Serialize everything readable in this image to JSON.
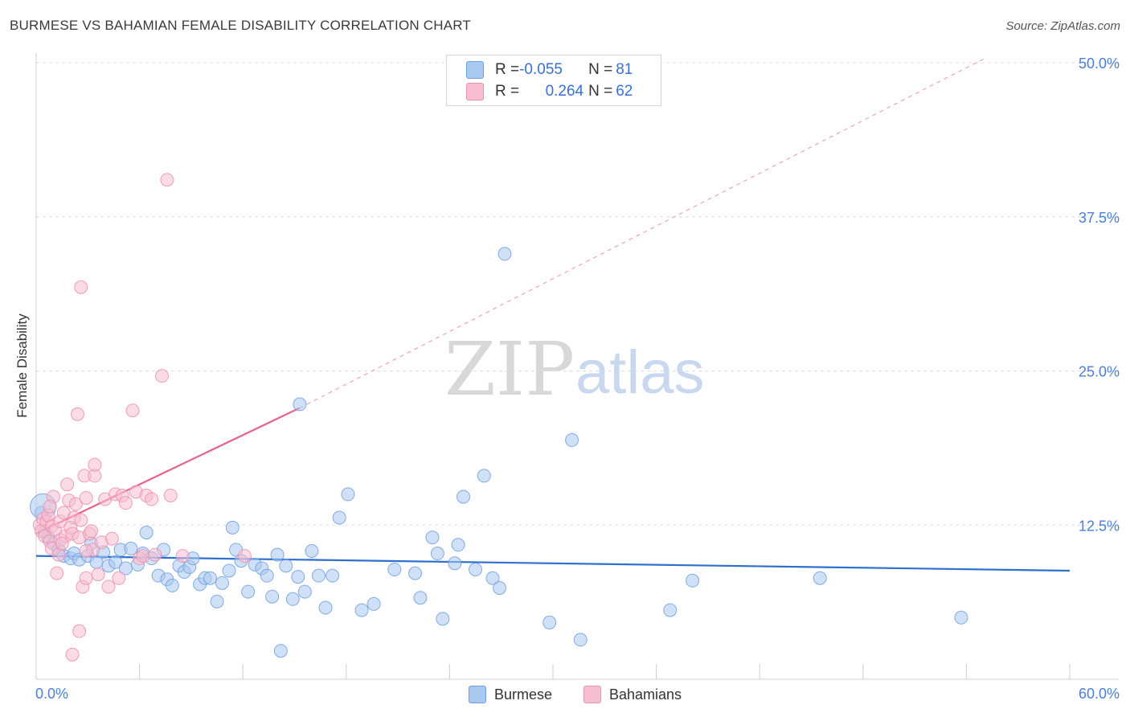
{
  "title": "BURMESE VS BAHAMIAN FEMALE DISABILITY CORRELATION CHART",
  "source": "Source: ZipAtlas.com",
  "legend": {
    "rows": [
      {
        "r_label": "R = ",
        "r_value": "-0.055",
        "n_label": "N = ",
        "n_value": "81",
        "color": "#a9c8f0",
        "border": "#6f9fe0"
      },
      {
        "r_label": "R = ",
        "r_value": "0.264",
        "n_label": "N = ",
        "n_value": "62",
        "color": "#f7bdd0",
        "border": "#ec8fae"
      }
    ]
  },
  "bottom_legend": [
    {
      "label": "Burmese",
      "color": "#a9c8f0",
      "border": "#6f9fe0"
    },
    {
      "label": "Bahamians",
      "color": "#f7bdd0",
      "border": "#ec8fae"
    }
  ],
  "watermark": {
    "zip": "ZIP",
    "atlas": "atlas"
  },
  "chart_data": {
    "type": "scatter",
    "title": "BURMESE VS BAHAMIAN FEMALE DISABILITY CORRELATION CHART",
    "xlabel": "",
    "ylabel": "Female Disability",
    "xlim": [
      0,
      60
    ],
    "ylim": [
      0,
      50
    ],
    "x_tick_labels": [
      "0.0%",
      "60.0%"
    ],
    "y_ticks": [
      12.5,
      25.0,
      37.5,
      50.0
    ],
    "y_tick_labels": [
      "12.5%",
      "25.0%",
      "37.5%",
      "50.0%"
    ],
    "grid": true,
    "legend_position": "top-center",
    "series": [
      {
        "name": "Burmese",
        "color": "#6f9fe0",
        "fill": "#a9c8f0",
        "trend": {
          "x": [
            0,
            60
          ],
          "y": [
            10.0,
            8.8
          ],
          "color": "#2f6fd0"
        },
        "points": [
          [
            0.3,
            13.5
          ],
          [
            0.5,
            12.0
          ],
          [
            0.7,
            11.5
          ],
          [
            1.0,
            11.0
          ],
          [
            1.3,
            10.5
          ],
          [
            1.6,
            10.0
          ],
          [
            2.0,
            9.8
          ],
          [
            2.2,
            10.2
          ],
          [
            2.5,
            9.7
          ],
          [
            3.0,
            10.0
          ],
          [
            3.2,
            11.0
          ],
          [
            3.5,
            9.5
          ],
          [
            3.9,
            10.3
          ],
          [
            4.2,
            9.2
          ],
          [
            4.6,
            9.5
          ],
          [
            4.9,
            10.5
          ],
          [
            5.2,
            9.0
          ],
          [
            5.5,
            10.6
          ],
          [
            5.9,
            9.3
          ],
          [
            6.2,
            10.2
          ],
          [
            6.4,
            11.9
          ],
          [
            6.7,
            9.8
          ],
          [
            7.1,
            8.4
          ],
          [
            7.4,
            10.5
          ],
          [
            7.6,
            8.1
          ],
          [
            7.9,
            7.6
          ],
          [
            8.3,
            9.2
          ],
          [
            8.6,
            8.7
          ],
          [
            8.9,
            9.1
          ],
          [
            9.1,
            9.8
          ],
          [
            9.5,
            7.7
          ],
          [
            9.8,
            8.2
          ],
          [
            10.1,
            8.2
          ],
          [
            10.5,
            6.3
          ],
          [
            10.8,
            7.8
          ],
          [
            11.2,
            8.8
          ],
          [
            11.4,
            12.3
          ],
          [
            11.6,
            10.5
          ],
          [
            11.9,
            9.6
          ],
          [
            12.3,
            7.1
          ],
          [
            12.7,
            9.3
          ],
          [
            13.1,
            9.0
          ],
          [
            13.4,
            8.4
          ],
          [
            13.7,
            6.7
          ],
          [
            14.0,
            10.1
          ],
          [
            14.2,
            2.3
          ],
          [
            14.5,
            9.2
          ],
          [
            14.9,
            6.5
          ],
          [
            15.2,
            8.3
          ],
          [
            15.6,
            7.1
          ],
          [
            16.0,
            10.4
          ],
          [
            16.4,
            8.4
          ],
          [
            16.8,
            5.8
          ],
          [
            17.2,
            8.4
          ],
          [
            17.6,
            13.1
          ],
          [
            18.1,
            15.0
          ],
          [
            18.9,
            5.6
          ],
          [
            19.6,
            6.1
          ],
          [
            20.8,
            8.9
          ],
          [
            22.0,
            8.6
          ],
          [
            22.3,
            6.6
          ],
          [
            23.0,
            11.5
          ],
          [
            23.3,
            10.2
          ],
          [
            23.6,
            4.9
          ],
          [
            24.3,
            9.4
          ],
          [
            24.5,
            10.9
          ],
          [
            24.8,
            14.8
          ],
          [
            25.5,
            8.9
          ],
          [
            26.0,
            16.5
          ],
          [
            26.5,
            8.2
          ],
          [
            26.9,
            7.4
          ],
          [
            27.2,
            34.5
          ],
          [
            29.8,
            4.6
          ],
          [
            31.1,
            19.4
          ],
          [
            31.6,
            3.2
          ],
          [
            36.8,
            5.6
          ],
          [
            38.1,
            8.0
          ],
          [
            15.3,
            22.3
          ],
          [
            45.5,
            8.2
          ],
          [
            53.7,
            5.0
          ],
          [
            0.4,
            14.0
          ]
        ]
      },
      {
        "name": "Bahamians",
        "color": "#ec8fae",
        "fill": "#f7bdd0",
        "trend": {
          "x": [
            0,
            15.3
          ],
          "y": [
            11.8,
            22.0
          ],
          "color": "#e8628f"
        },
        "trend_extended": {
          "x": [
            15.3,
            55.0
          ],
          "y": [
            22.0,
            50.3
          ]
        },
        "points": [
          [
            0.2,
            12.5
          ],
          [
            0.3,
            12.0
          ],
          [
            0.4,
            13.0
          ],
          [
            0.5,
            11.6
          ],
          [
            0.6,
            12.8
          ],
          [
            0.7,
            13.3
          ],
          [
            0.8,
            11.2
          ],
          [
            0.9,
            10.6
          ],
          [
            0.9,
            12.4
          ],
          [
            1.0,
            14.8
          ],
          [
            1.1,
            12.1
          ],
          [
            1.2,
            8.6
          ],
          [
            1.3,
            10.1
          ],
          [
            1.4,
            11.3
          ],
          [
            1.4,
            12.8
          ],
          [
            1.6,
            13.5
          ],
          [
            1.7,
            11.6
          ],
          [
            1.8,
            15.8
          ],
          [
            1.9,
            14.5
          ],
          [
            2.0,
            12.3
          ],
          [
            2.1,
            11.8
          ],
          [
            2.2,
            13.1
          ],
          [
            2.3,
            14.2
          ],
          [
            2.4,
            21.5
          ],
          [
            2.5,
            11.5
          ],
          [
            2.5,
            3.9
          ],
          [
            2.6,
            31.8
          ],
          [
            2.6,
            12.9
          ],
          [
            2.7,
            7.5
          ],
          [
            2.8,
            16.5
          ],
          [
            2.9,
            14.7
          ],
          [
            2.9,
            8.2
          ],
          [
            3.1,
            11.8
          ],
          [
            3.2,
            12.0
          ],
          [
            3.3,
            10.5
          ],
          [
            3.4,
            16.5
          ],
          [
            3.6,
            8.5
          ],
          [
            3.8,
            11.1
          ],
          [
            4.0,
            14.6
          ],
          [
            4.2,
            7.5
          ],
          [
            4.4,
            11.4
          ],
          [
            4.6,
            15.0
          ],
          [
            4.8,
            8.2
          ],
          [
            5.0,
            14.9
          ],
          [
            5.2,
            14.3
          ],
          [
            5.6,
            21.8
          ],
          [
            5.8,
            15.2
          ],
          [
            6.0,
            9.8
          ],
          [
            6.2,
            10.0
          ],
          [
            6.4,
            14.9
          ],
          [
            6.7,
            14.6
          ],
          [
            6.9,
            10.1
          ],
          [
            7.3,
            24.6
          ],
          [
            7.6,
            40.5
          ],
          [
            7.8,
            14.9
          ],
          [
            8.5,
            10.0
          ],
          [
            12.1,
            10.0
          ],
          [
            2.1,
            2.0
          ],
          [
            3.4,
            17.4
          ],
          [
            1.5,
            11.0
          ],
          [
            0.8,
            14.0
          ],
          [
            2.9,
            10.4
          ]
        ]
      }
    ]
  }
}
